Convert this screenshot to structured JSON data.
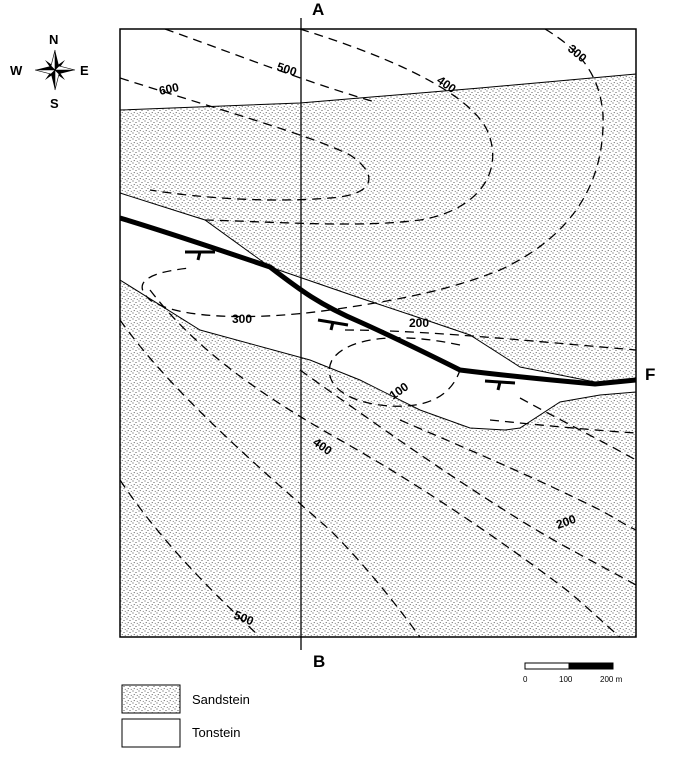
{
  "compass": {
    "north": "N",
    "south": "S",
    "east": "E",
    "west": "W"
  },
  "section_line": {
    "start_label": "A",
    "end_label": "B"
  },
  "fault_label": "F",
  "contour_labels": {
    "top_600": "600",
    "top_500": "500",
    "top_400": "400",
    "top_300": "300",
    "mid_300": "300",
    "mid_200": "200",
    "mid_100": "100",
    "low_400": "400",
    "low_200": "200",
    "low_500": "500"
  },
  "scale_bar": {
    "tick_0": "0",
    "tick_100": "100",
    "tick_200": "200 m"
  },
  "legend": [
    {
      "label": "Sandstein",
      "pattern": "stippled"
    },
    {
      "label": "Tonstein",
      "pattern": "blank"
    }
  ],
  "colors": {
    "ink": "#000000",
    "paper": "#ffffff"
  }
}
